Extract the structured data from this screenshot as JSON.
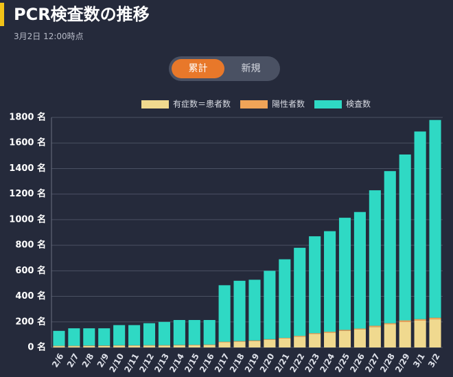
{
  "chart_data": {
    "type": "stacked-bar",
    "title": "PCR検査数の推移",
    "subtitle": "3月2日 12:00時点",
    "categories": [
      "2/6",
      "2/7",
      "2/8",
      "2/9",
      "2/10",
      "2/11",
      "2/12",
      "2/13",
      "2/14",
      "2/15",
      "2/16",
      "2/17",
      "2/18",
      "2/19",
      "2/20",
      "2/21",
      "2/22",
      "2/23",
      "2/24",
      "2/25",
      "2/26",
      "2/27",
      "2/28",
      "2/29",
      "3/1",
      "3/2"
    ],
    "series": [
      {
        "name": "有症数＝患者数",
        "color": "#f0d98f",
        "values": [
          10,
          10,
          12,
          12,
          14,
          14,
          15,
          15,
          17,
          18,
          20,
          40,
          45,
          50,
          60,
          70,
          85,
          105,
          115,
          130,
          140,
          160,
          180,
          200,
          210,
          220
        ]
      },
      {
        "name": "陽性者数",
        "color": "#f0a458",
        "values": [
          3,
          3,
          3,
          3,
          3,
          3,
          3,
          3,
          3,
          3,
          3,
          5,
          5,
          5,
          5,
          5,
          6,
          7,
          8,
          8,
          8,
          10,
          10,
          12,
          12,
          13
        ]
      },
      {
        "name": "検査数",
        "color": "#2fd9c4",
        "values": [
          117,
          137,
          135,
          135,
          158,
          158,
          172,
          182,
          195,
          194,
          192,
          442,
          472,
          475,
          535,
          615,
          689,
          758,
          787,
          877,
          912,
          1060,
          1190,
          1298,
          1468,
          1547
        ]
      }
    ],
    "ylim": [
      0,
      1800
    ],
    "yticks": [
      {
        "value": 0,
        "label": "0 名"
      },
      {
        "value": 200,
        "label": "200 名"
      },
      {
        "value": 400,
        "label": "400 名"
      },
      {
        "value": 600,
        "label": "600 名"
      },
      {
        "value": 800,
        "label": "800 名"
      },
      {
        "value": 1000,
        "label": "1000 名"
      },
      {
        "value": 1200,
        "label": "1200 名"
      },
      {
        "value": 1400,
        "label": "1400 名"
      },
      {
        "value": 1600,
        "label": "1600 名"
      },
      {
        "value": 1800,
        "label": "1800 名"
      }
    ],
    "grid": true,
    "legend": "top"
  },
  "toggle": {
    "options": [
      "累計",
      "新規"
    ]
  }
}
